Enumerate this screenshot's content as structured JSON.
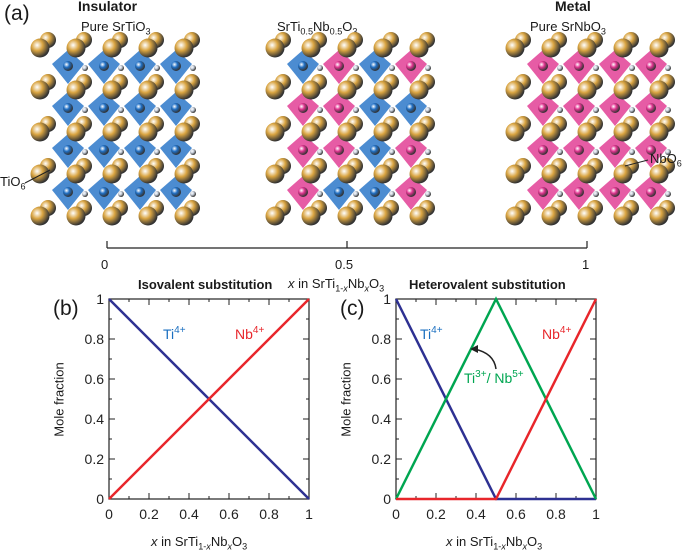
{
  "panel_a": {
    "label": "(a)",
    "structures": [
      {
        "heading": "Insulator",
        "name": "Pure SrTiO",
        "name_sub": "3",
        "nb_fraction": 0
      },
      {
        "heading": "",
        "name_parts": [
          "SrTi",
          "0.5",
          "Nb",
          "0.5",
          "O",
          "3"
        ],
        "nb_fraction": 0.5
      },
      {
        "heading": "Metal",
        "name": "Pure SrNbO",
        "name_sub": "3",
        "nb_fraction": 1
      }
    ],
    "octahedron_labels": {
      "ti": "TiO",
      "ti_sub": "6",
      "nb": "NbO",
      "nb_sub": "6"
    },
    "axis": {
      "ticks": [
        "0",
        "0.5",
        "1"
      ],
      "xlabel_parts": [
        "x",
        " in SrTi",
        "1-",
        "x",
        "Nb",
        "x",
        "O",
        "3"
      ]
    },
    "colors": {
      "sr": "#d9a441",
      "ti_octahedron": "#1f6fc5",
      "nb_octahedron": "#e0338f",
      "oxygen": "#c8d0dc"
    }
  },
  "chart_data": [
    {
      "panel": "(b)",
      "type": "line",
      "title": "Isovalent substitution",
      "xlabel_parts": [
        "x",
        " in SrTi",
        "1-",
        "x",
        "Nb",
        "x",
        "O",
        "3"
      ],
      "ylabel": "Mole fraction",
      "xlim": [
        0,
        1
      ],
      "ylim": [
        0,
        1
      ],
      "xticks": [
        "0",
        "0.2",
        "0.4",
        "0.6",
        "0.8",
        "1"
      ],
      "yticks": [
        "0",
        "0.2",
        "0.4",
        "0.6",
        "0.8",
        "1"
      ],
      "grid": false,
      "series": [
        {
          "name": "Ti",
          "charge": "4+",
          "color": "#2e3192",
          "label_color": "#1a6fc0",
          "label_at": [
            0.27,
            0.8
          ],
          "x": [
            0,
            1
          ],
          "y": [
            1,
            0
          ]
        },
        {
          "name": "Nb",
          "charge": "4+",
          "color": "#e8262b",
          "label_color": "#e8262b",
          "label_at": [
            0.63,
            0.8
          ],
          "x": [
            0,
            1
          ],
          "y": [
            0,
            1
          ]
        }
      ]
    },
    {
      "panel": "(c)",
      "type": "line",
      "title": "Heterovalent substitution",
      "xlabel_parts": [
        "x",
        " in SrTi",
        "1-",
        "x",
        "Nb",
        "x",
        "O",
        "3"
      ],
      "ylabel": "Mole fraction",
      "xlim": [
        0,
        1
      ],
      "ylim": [
        0,
        1
      ],
      "xticks": [
        "0",
        "0.2",
        "0.4",
        "0.6",
        "0.8",
        "1"
      ],
      "yticks": [
        "0",
        "0.2",
        "0.4",
        "0.6",
        "0.8",
        "1"
      ],
      "grid": false,
      "series": [
        {
          "name": "Ti",
          "charge": "4+",
          "color": "#2e3192",
          "label_color": "#1a6fc0",
          "label_at": [
            0.12,
            0.8
          ],
          "x": [
            0,
            0.5,
            1
          ],
          "y": [
            1,
            0,
            0
          ]
        },
        {
          "name": "Ti/Nb",
          "label_text": [
            "Ti",
            "3+",
            "/ Nb",
            "5+"
          ],
          "color": "#00a651",
          "label_color": "#00a651",
          "label_at": [
            0.34,
            0.58
          ],
          "x": [
            0,
            0.5,
            1
          ],
          "y": [
            0,
            1,
            0
          ]
        },
        {
          "name": "Nb",
          "charge": "4+",
          "color": "#e8262b",
          "label_color": "#e8262b",
          "label_at": [
            0.73,
            0.8
          ],
          "x": [
            0,
            0.5,
            1
          ],
          "y": [
            0,
            0,
            1
          ]
        }
      ]
    }
  ]
}
